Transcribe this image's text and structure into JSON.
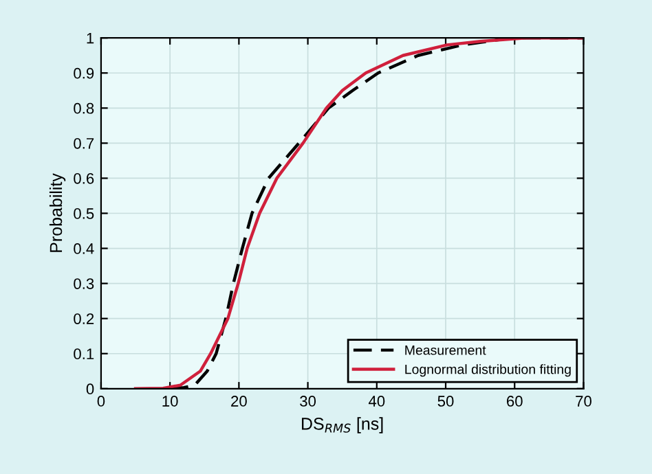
{
  "chart_data": {
    "type": "line",
    "xlabel": "DS$_{RMS}$ [ns]",
    "ylabel": "Probability",
    "xlim": [
      0,
      70
    ],
    "ylim": [
      0,
      1
    ],
    "xticks": [
      0,
      10,
      20,
      30,
      40,
      50,
      60,
      70
    ],
    "yticks": [
      0,
      0.1,
      0.2,
      0.3,
      0.4,
      0.5,
      0.6,
      0.7,
      0.8,
      0.9,
      1
    ],
    "grid": true,
    "legend": "bottom right",
    "series": [
      {
        "name": "Measurement",
        "color": "#000000",
        "line_style": "dashed",
        "x": [
          10,
          12,
          13.6,
          15.4,
          16.7,
          18.1,
          19.2,
          20.5,
          21.9,
          24.3,
          28.7,
          33,
          36.5,
          40.2,
          46,
          52.4,
          59.6,
          70
        ],
        "values": [
          0,
          0.003,
          0.01,
          0.05,
          0.1,
          0.2,
          0.3,
          0.4,
          0.5,
          0.6,
          0.7,
          0.8,
          0.85,
          0.9,
          0.95,
          0.98,
          1,
          1
        ]
      },
      {
        "name": "Lognormal distribution fitting",
        "color": "#d0203c",
        "line_style": "solid",
        "x": [
          5,
          9,
          11.5,
          14.4,
          15.9,
          18.4,
          19.9,
          21.2,
          23,
          25.5,
          29.3,
          32.7,
          35,
          38.4,
          43.8,
          50.2,
          55,
          61.7,
          70
        ],
        "values": [
          0,
          0.001,
          0.01,
          0.05,
          0.1,
          0.2,
          0.3,
          0.4,
          0.5,
          0.6,
          0.7,
          0.8,
          0.85,
          0.9,
          0.95,
          0.98,
          0.99,
          1,
          1
        ]
      }
    ]
  }
}
